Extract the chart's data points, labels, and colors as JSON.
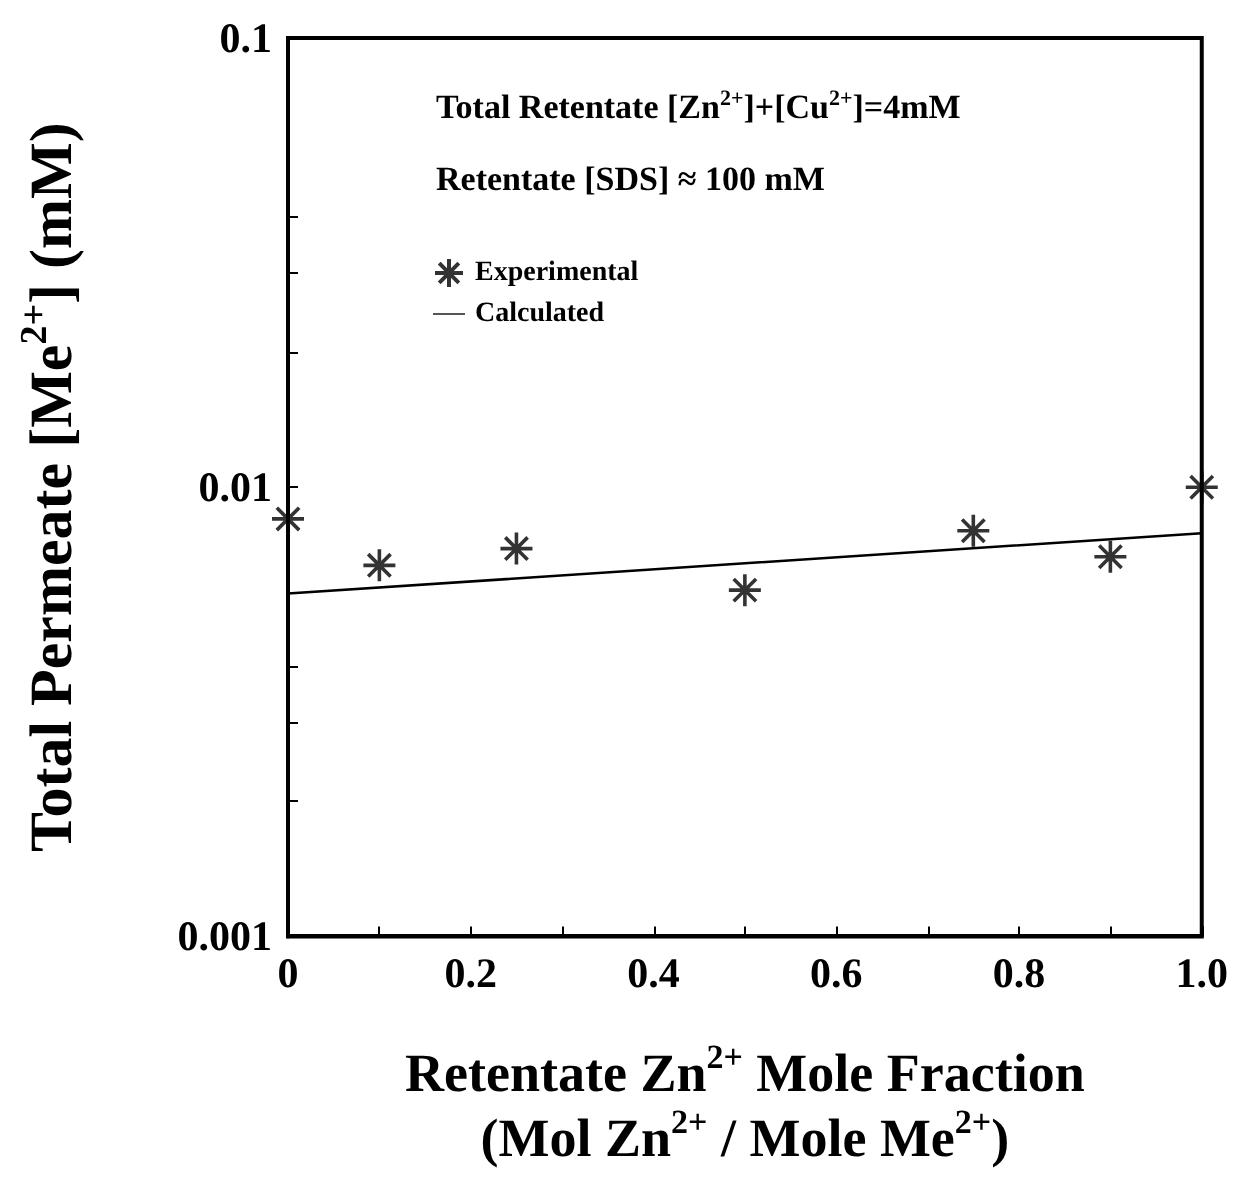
{
  "chart_data": {
    "type": "scatter",
    "xlabel": "Retentate Zn$^{2+}$ Mole Fraction\n(Mol Zn$^{2+}$ / Mole Me$^{2+}$)",
    "ylabel": "Total Permeate [Me$^{2+}$] (mM)",
    "annotations": [
      "Total Retentate [Zn$^{2+}$]+[Cu$^{2+}$]=4mM",
      "Retentate [SDS] ≈ 100 mM"
    ],
    "series": [
      {
        "name": "Experimental",
        "marker": "cross",
        "color": "#000000",
        "x": [
          0,
          0.1,
          0.25,
          0.5,
          0.75,
          0.9,
          1.0
        ],
        "values": [
          0.0085,
          0.0067,
          0.0073,
          0.0059,
          0.008,
          0.007,
          0.01
        ]
      },
      {
        "name": "Calculated",
        "type": "line",
        "marker": "none",
        "line_style": "solid",
        "color": "#000000",
        "x": [
          0,
          1.0
        ],
        "values": [
          0.0058,
          0.0079
        ]
      }
    ],
    "log": "y",
    "legend": "top",
    "grid": false,
    "xlim": [
      0,
      1.0
    ],
    "xticks": [
      0,
      {
        "value": 0.1,
        "label": null
      },
      0.2,
      {
        "value": 0.3,
        "label": null
      },
      0.4,
      {
        "value": 0.5,
        "label": null
      },
      0.6,
      {
        "value": 0.7,
        "label": null
      },
      0.8,
      {
        "value": 0.9,
        "label": null
      },
      "1.0"
    ],
    "ylim": [
      0.001,
      0.1
    ],
    "yticks": [
      0.001,
      {
        "value": 0.002,
        "label": null
      },
      {
        "value": 0.003,
        "label": null
      },
      {
        "value": 0.004,
        "label": null
      },
      0.01,
      {
        "value": 0.02,
        "label": null
      },
      {
        "value": 0.03,
        "label": null
      },
      {
        "value": 0.04,
        "label": null
      },
      0.1
    ]
  }
}
